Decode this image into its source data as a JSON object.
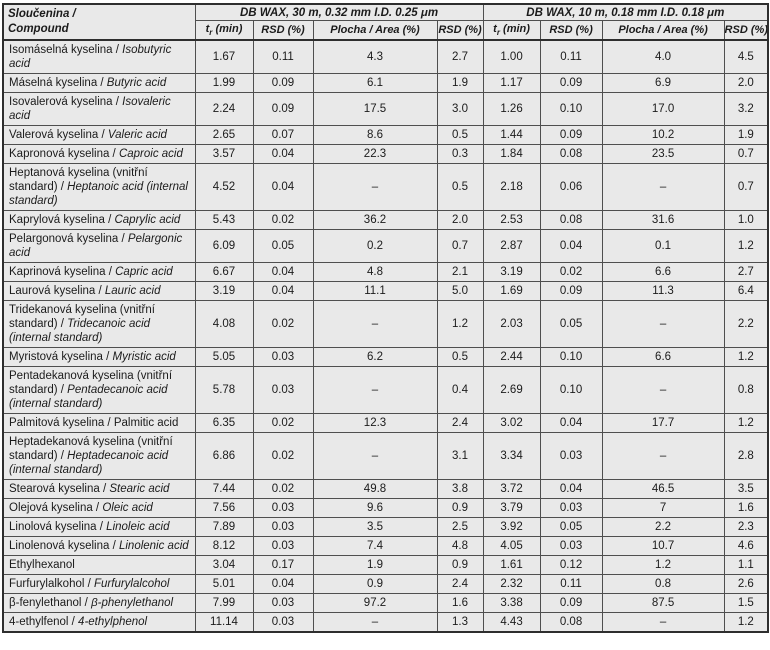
{
  "table": {
    "header": {
      "compound": {
        "line1": "Sloučenina /",
        "line2": "Compound"
      },
      "group1": "DB WAX, 30 m, 0.32 mm I.D. 0.25 μm",
      "group2": "DB WAX, 10 m, 0.18 mm I.D. 0.18 μm",
      "sub": {
        "t": "t",
        "t_sub": "r",
        "t_rest": " (min)",
        "rsd": "RSD (%)",
        "area": "Plocha / Area (%)"
      }
    },
    "colors": {
      "cell_background": "#e9e9e9",
      "border": "#4f4f4f",
      "outer_border": "#2e2e2e",
      "text": "#1b1b1b"
    },
    "rows": [
      {
        "cz": "Isomáselná kyselina / ",
        "en": "Isobutyric acid",
        "en_italic": true,
        "v": [
          "1.67",
          "0.11",
          "4.3",
          "2.7",
          "1.00",
          "0.11",
          "4.0",
          "4.5"
        ]
      },
      {
        "cz": "Máselná kyselina / ",
        "en": "Butyric acid",
        "en_italic": true,
        "v": [
          "1.99",
          "0.09",
          "6.1",
          "1.9",
          "1.17",
          "0.09",
          "6.9",
          "2.0"
        ]
      },
      {
        "cz": "Isovalerová kyselina / ",
        "en": "Isovaleric acid",
        "en_italic": true,
        "v": [
          "2.24",
          "0.09",
          "17.5",
          "3.0",
          "1.26",
          "0.10",
          "17.0",
          "3.2"
        ]
      },
      {
        "cz": "Valerová kyselina / ",
        "en": "Valeric acid",
        "en_italic": true,
        "v": [
          "2.65",
          "0.07",
          "8.6",
          "0.5",
          "1.44",
          "0.09",
          "10.2",
          "1.9"
        ]
      },
      {
        "cz": "Kapronová kyselina / ",
        "en": "Caproic acid",
        "en_italic": true,
        "v": [
          "3.57",
          "0.04",
          "22.3",
          "0.3",
          "1.84",
          "0.08",
          "23.5",
          "0.7"
        ]
      },
      {
        "cz": "Heptanová kyselina (vnitřní standard) / ",
        "en": "Heptanoic acid (internal standard)",
        "en_italic": true,
        "v": [
          "4.52",
          "0.04",
          "–",
          "0.5",
          "2.18",
          "0.06",
          "–",
          "0.7"
        ]
      },
      {
        "cz": "Kaprylová kyselina / ",
        "en": "Caprylic acid",
        "en_italic": true,
        "v": [
          "5.43",
          "0.02",
          "36.2",
          "2.0",
          "2.53",
          "0.08",
          "31.6",
          "1.0"
        ]
      },
      {
        "cz": "Pelargonová kyselina / ",
        "en": "Pelargonic acid",
        "en_italic": true,
        "v": [
          "6.09",
          "0.05",
          "0.2",
          "0.7",
          "2.87",
          "0.04",
          "0.1",
          "1.2"
        ]
      },
      {
        "cz": "Kaprinová kyselina / ",
        "en": "Capric acid",
        "en_italic": true,
        "v": [
          "6.67",
          "0.04",
          "4.8",
          "2.1",
          "3.19",
          "0.02",
          "6.6",
          "2.7"
        ]
      },
      {
        "cz": "Laurová kyselina / ",
        "en": "Lauric acid",
        "en_italic": true,
        "v": [
          "3.19",
          "0.04",
          "11.1",
          "5.0",
          "1.69",
          "0.09",
          "11.3",
          "6.4"
        ]
      },
      {
        "cz": "Tridekanová kyselina (vnitřní standard) / ",
        "en": "Tridecanoic acid (internal standard)",
        "en_italic": true,
        "v": [
          "4.08",
          "0.02",
          "–",
          "1.2",
          "2.03",
          "0.05",
          "–",
          "2.2"
        ]
      },
      {
        "cz": "Myristová kyselina / ",
        "en": "Myristic acid",
        "en_italic": true,
        "v": [
          "5.05",
          "0.03",
          "6.2",
          "0.5",
          "2.44",
          "0.10",
          "6.6",
          "1.2"
        ]
      },
      {
        "cz": "Pentadekanová kyselina (vnitřní standard) / ",
        "en": "Pentadecanoic acid (internal standard)",
        "en_italic": true,
        "v": [
          "5.78",
          "0.03",
          "–",
          "0.4",
          "2.69",
          "0.10",
          "–",
          "0.8"
        ]
      },
      {
        "cz": "Palmitová kyselina / ",
        "en": "Palmitic acid",
        "en_italic": false,
        "v": [
          "6.35",
          "0.02",
          "12.3",
          "2.4",
          "3.02",
          "0.04",
          "17.7",
          "1.2"
        ]
      },
      {
        "cz": "Heptadekanová kyselina (vnitřní standard) / ",
        "en": "Heptadecanoic acid (internal standard)",
        "en_italic": true,
        "v": [
          "6.86",
          "0.02",
          "–",
          "3.1",
          "3.34",
          "0.03",
          "–",
          "2.8"
        ]
      },
      {
        "cz": "Stearová kyselina / ",
        "en": "Stearic acid",
        "en_italic": true,
        "v": [
          "7.44",
          "0.02",
          "49.8",
          "3.8",
          "3.72",
          "0.04",
          "46.5",
          "3.5"
        ]
      },
      {
        "cz": "Olejová kyselina / ",
        "en": "Oleic acid",
        "en_italic": true,
        "v": [
          "7.56",
          "0.03",
          "9.6",
          "0.9",
          "3.79",
          "0.03",
          "7",
          "1.6"
        ]
      },
      {
        "cz": "Linolová kyselina / ",
        "en": "Linoleic acid",
        "en_italic": true,
        "v": [
          "7.89",
          "0.03",
          "3.5",
          "2.5",
          "3.92",
          "0.05",
          "2.2",
          "2.3"
        ]
      },
      {
        "cz": "Linolenová kyselina / ",
        "en": "Linolenic acid",
        "en_italic": true,
        "v": [
          "8.12",
          "0.03",
          "7.4",
          "4.8",
          "4.05",
          "0.03",
          "10.7",
          "4.6"
        ]
      },
      {
        "cz": "Ethylhexanol",
        "en": "",
        "en_italic": false,
        "v": [
          "3.04",
          "0.17",
          "1.9",
          "0.9",
          "1.61",
          "0.12",
          "1.2",
          "1.1"
        ]
      },
      {
        "cz": "Furfurylalkohol / ",
        "en": "Furfurylalcohol",
        "en_italic": true,
        "v": [
          "5.01",
          "0.04",
          "0.9",
          "2.4",
          "2.32",
          "0.11",
          "0.8",
          "2.6"
        ]
      },
      {
        "cz": "β-fenylethanol / ",
        "en": "β-phenylethanol",
        "en_italic": true,
        "v": [
          "7.99",
          "0.03",
          "97.2",
          "1.6",
          "3.38",
          "0.09",
          "87.5",
          "1.5"
        ]
      },
      {
        "cz": "4-ethylfenol / ",
        "en": "4-ethylphenol",
        "en_italic": true,
        "v": [
          "11.14",
          "0.03",
          "–",
          "1.3",
          "4.43",
          "0.08",
          "–",
          "1.2"
        ]
      }
    ]
  }
}
